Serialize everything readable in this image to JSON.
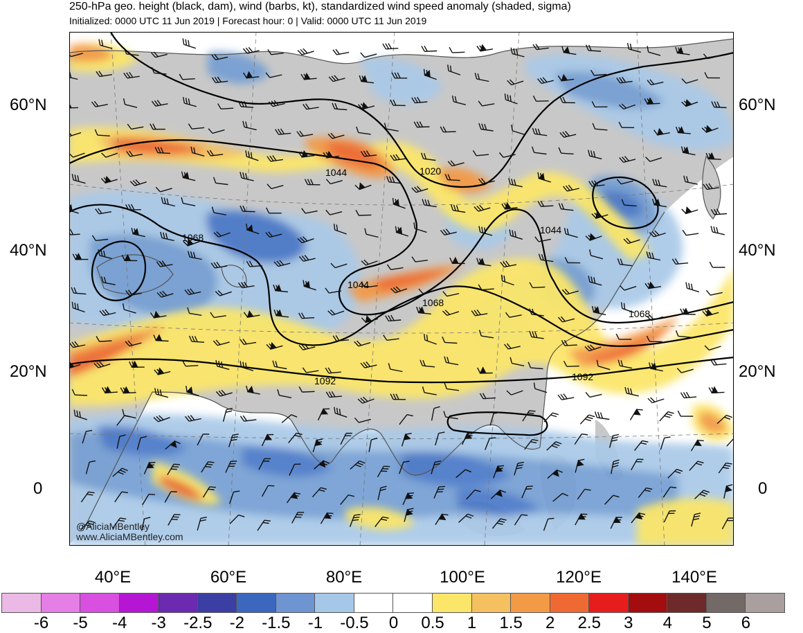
{
  "header": {
    "title": "250-hPa geo. height (black, dam), wind (barbs, kt), standardized wind speed anomaly (shaded, sigma)",
    "subtitle": "Initialized: 0000 UTC 11 Jun 2019 | Forecast hour: 0 | Valid: 0000 UTC 11 Jun 2019"
  },
  "map": {
    "lat_labels": [
      "60°N",
      "40°N",
      "20°N",
      "0"
    ],
    "lon_labels": [
      "40°E",
      "60°E",
      "80°E",
      "100°E",
      "120°E",
      "140°E"
    ],
    "contour_labels": [
      "1068",
      "1044",
      "1020",
      "1044",
      "1044",
      "1068",
      "1068",
      "1092",
      "1092"
    ],
    "credit_handle": "@AliciaMBentley",
    "credit_site": "www.AliciaMBentley.com",
    "colors": {
      "land": "#c8c8c8",
      "ocean": "#ffffff",
      "anomaly_pos": [
        "#fbe66a",
        "#f5c160",
        "#f39a46",
        "#ef6a33",
        "#e71d1d"
      ],
      "anomaly_neg": [
        "#a9c9e8",
        "#749fd3",
        "#4a78c8",
        "#3a4fb0",
        "#5b2ea6"
      ]
    }
  },
  "colorbar": {
    "labels": [
      "-6",
      "-5",
      "-4",
      "-3",
      "-2.5",
      "-2",
      "-1.5",
      "-1",
      "-0.5",
      "0",
      "0.5",
      "1",
      "1.5",
      "2",
      "2.5",
      "3",
      "4",
      "5",
      "6"
    ],
    "colors": [
      "#ebb9e6",
      "#e57fe6",
      "#d94fe0",
      "#b516d3",
      "#6b2ab0",
      "#3b3ea2",
      "#3b67bf",
      "#6e94d2",
      "#a6c8e8",
      "#ffffff",
      "#ffffff",
      "#fbe66a",
      "#f5c160",
      "#f39a46",
      "#ef6a33",
      "#e71d1d",
      "#a30d10",
      "#6e2a2a",
      "#736967",
      "#a89f9e"
    ]
  }
}
